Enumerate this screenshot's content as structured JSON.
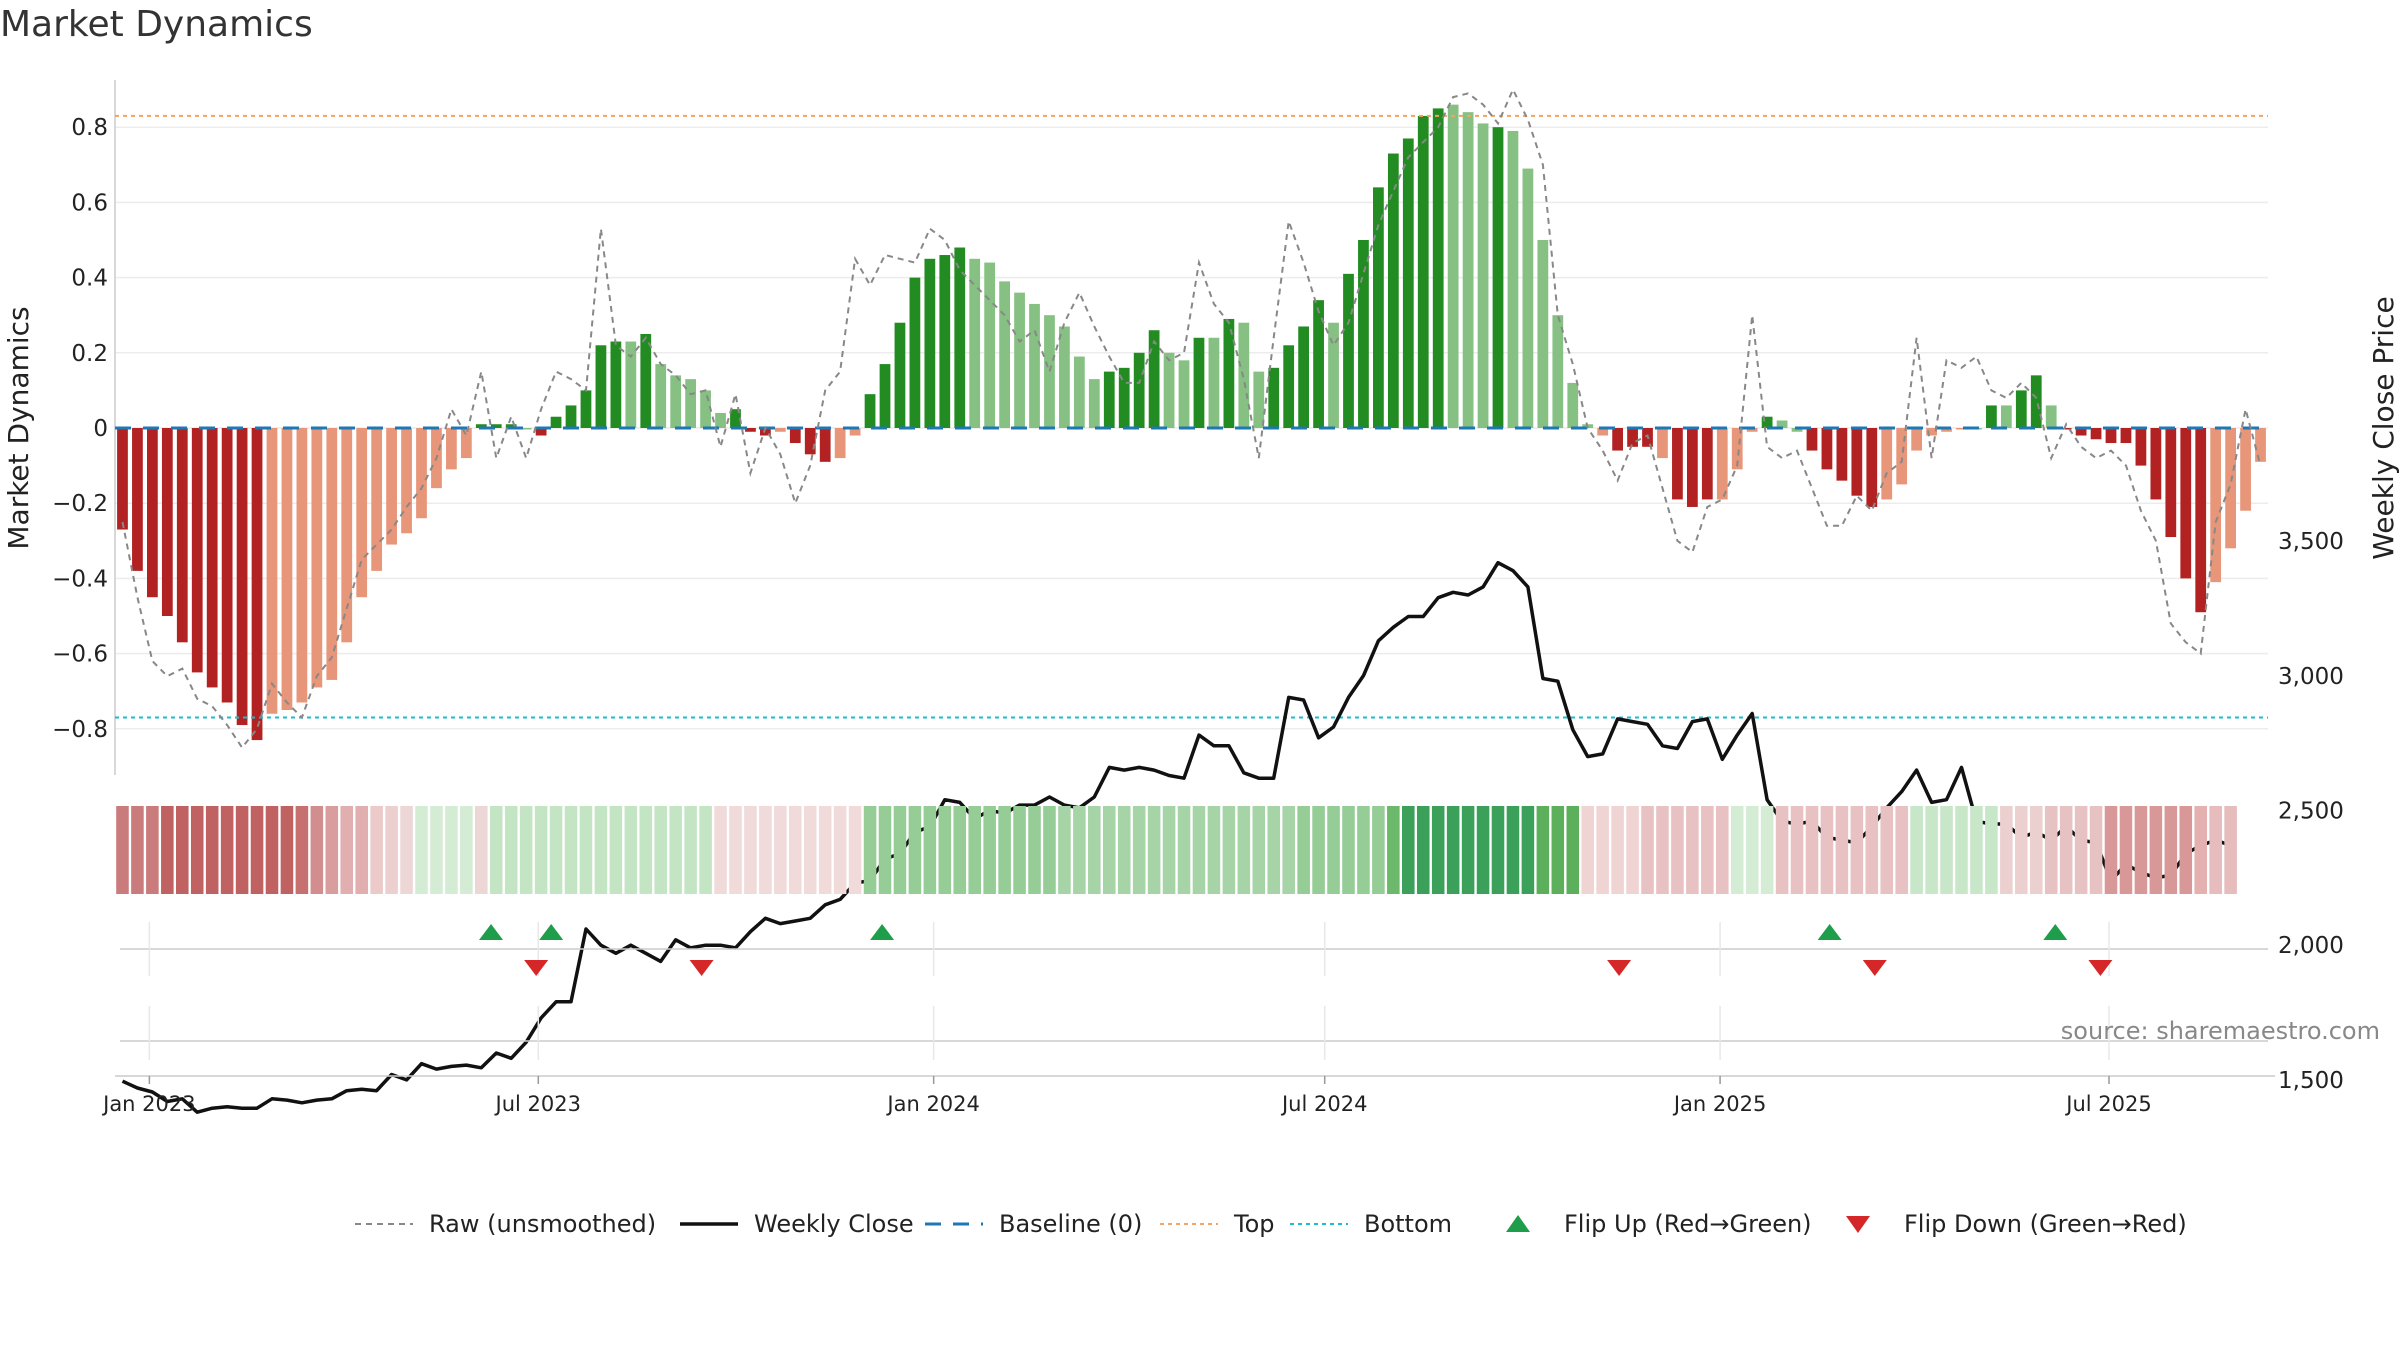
{
  "title": "Market Dynamics",
  "source_text": "source: sharemaestro.com",
  "chart_data": {
    "type": "bar",
    "ylabel_left": "Market Dynamics",
    "ylabel_right": "Weekly Close Price",
    "ylim_left": [
      -0.9,
      0.93
    ],
    "yticks_left": [
      0.8,
      0.6,
      0.4,
      0.2,
      0,
      -0.2,
      -0.4,
      -0.6,
      -0.8
    ],
    "ytick_labels_left": [
      "0.8",
      "0.6",
      "0.4",
      "0.2",
      "0",
      "−0.2",
      "−0.4",
      "−0.6",
      "−0.8"
    ],
    "yticks_right": [
      3500,
      3000,
      2500,
      2000,
      1500
    ],
    "ytick_labels_right": [
      "3,500",
      "3,000",
      "2,500",
      "2,000",
      "1,500"
    ],
    "x_start": "2022-12-16",
    "x_end": "2025-09-13",
    "xticks": [
      "2023-01-01",
      "2023-07-01",
      "2024-01-01",
      "2024-07-01",
      "2025-01-01",
      "2025-07-01"
    ],
    "xtick_labels": [
      "Jan 2023",
      "Jul 2023",
      "Jan 2024",
      "Jul 2024",
      "Jan 2025",
      "Jul 2025"
    ],
    "top_level": 0.83,
    "bottom_level": -0.77,
    "baseline": 0,
    "colors": {
      "up_strong": "#228b22",
      "up_weak": "#86c183",
      "down_strong": "#b22222",
      "down_weak": "#e8967a",
      "raw": "#888888",
      "close": "#111111",
      "baseline": "#1f77b4",
      "top": "#f4a261",
      "bottom": "#17becf",
      "flip_up": "#1e9e4a",
      "flip_down": "#d62728"
    },
    "momentum": [
      -0.27,
      -0.38,
      -0.45,
      -0.5,
      -0.57,
      -0.65,
      -0.69,
      -0.73,
      -0.79,
      -0.83,
      -0.76,
      -0.75,
      -0.73,
      -0.69,
      -0.67,
      -0.57,
      -0.45,
      -0.38,
      -0.31,
      -0.28,
      -0.24,
      -0.16,
      -0.11,
      -0.08,
      0.01,
      0.01,
      0.01,
      0.0,
      -0.02,
      0.03,
      0.06,
      0.1,
      0.22,
      0.23,
      0.23,
      0.25,
      0.17,
      0.14,
      0.13,
      0.1,
      0.04,
      0.05,
      -0.01,
      -0.02,
      -0.01,
      -0.04,
      -0.07,
      -0.09,
      -0.08,
      -0.02,
      0.09,
      0.17,
      0.28,
      0.4,
      0.45,
      0.46,
      0.48,
      0.45,
      0.44,
      0.39,
      0.36,
      0.33,
      0.3,
      0.27,
      0.19,
      0.13,
      0.15,
      0.16,
      0.2,
      0.26,
      0.2,
      0.18,
      0.24,
      0.24,
      0.29,
      0.28,
      0.15,
      0.16,
      0.22,
      0.27,
      0.34,
      0.28,
      0.41,
      0.5,
      0.64,
      0.73,
      0.77,
      0.83,
      0.85,
      0.86,
      0.84,
      0.81,
      0.8,
      0.79,
      0.69,
      0.5,
      0.3,
      0.12,
      0.01,
      -0.02,
      -0.06,
      -0.05,
      -0.05,
      -0.08,
      -0.19,
      -0.21,
      -0.19,
      -0.19,
      -0.11,
      -0.01,
      0.03,
      0.02,
      -0.01,
      -0.06,
      -0.11,
      -0.14,
      -0.18,
      -0.21,
      -0.19,
      -0.15,
      -0.06,
      -0.02,
      -0.01,
      0.0,
      0.0,
      0.06,
      0.06,
      0.1,
      0.14,
      0.06,
      0.0,
      -0.02,
      -0.03,
      -0.04,
      -0.04,
      -0.1,
      -0.19,
      -0.29,
      -0.4,
      -0.49,
      -0.41,
      -0.32,
      -0.22,
      -0.09
    ],
    "colors_per_bar": [
      "ds",
      "ds",
      "ds",
      "ds",
      "ds",
      "ds",
      "ds",
      "ds",
      "ds",
      "ds",
      "dw",
      "dw",
      "dw",
      "dw",
      "dw",
      "dw",
      "dw",
      "dw",
      "dw",
      "dw",
      "dw",
      "dw",
      "dw",
      "dw",
      "us",
      "us",
      "us",
      "uw",
      "ds",
      "us",
      "us",
      "us",
      "us",
      "us",
      "uw",
      "us",
      "uw",
      "uw",
      "uw",
      "uw",
      "uw",
      "us",
      "ds",
      "ds",
      "dw",
      "ds",
      "ds",
      "ds",
      "dw",
      "dw",
      "us",
      "us",
      "us",
      "us",
      "us",
      "us",
      "us",
      "uw",
      "uw",
      "uw",
      "uw",
      "uw",
      "uw",
      "uw",
      "uw",
      "uw",
      "us",
      "us",
      "us",
      "us",
      "uw",
      "uw",
      "us",
      "uw",
      "us",
      "uw",
      "uw",
      "us",
      "us",
      "us",
      "us",
      "uw",
      "us",
      "us",
      "us",
      "us",
      "us",
      "us",
      "us",
      "uw",
      "uw",
      "uw",
      "us",
      "uw",
      "uw",
      "uw",
      "uw",
      "uw",
      "uw",
      "dw",
      "ds",
      "ds",
      "ds",
      "dw",
      "ds",
      "ds",
      "ds",
      "dw",
      "dw",
      "dw",
      "us",
      "uw",
      "uw",
      "ds",
      "ds",
      "ds",
      "ds",
      "ds",
      "dw",
      "dw",
      "dw",
      "dw",
      "dw",
      "dw",
      "uw",
      "us",
      "uw",
      "us",
      "us",
      "uw",
      "ds",
      "ds",
      "ds",
      "ds",
      "ds",
      "ds",
      "ds",
      "ds",
      "ds",
      "ds",
      "dw",
      "dw",
      "dw",
      "dw",
      "dw"
    ],
    "raw": [
      -0.25,
      -0.45,
      -0.62,
      -0.66,
      -0.64,
      -0.72,
      -0.74,
      -0.79,
      -0.85,
      -0.8,
      -0.68,
      -0.73,
      -0.77,
      -0.66,
      -0.61,
      -0.48,
      -0.35,
      -0.31,
      -0.27,
      -0.21,
      -0.16,
      -0.08,
      0.05,
      -0.02,
      0.15,
      -0.08,
      0.03,
      -0.08,
      0.05,
      0.15,
      0.13,
      0.1,
      0.53,
      0.22,
      0.19,
      0.24,
      0.17,
      0.14,
      0.09,
      0.1,
      -0.05,
      0.09,
      -0.12,
      0.0,
      -0.07,
      -0.2,
      -0.1,
      0.1,
      0.15,
      0.45,
      0.38,
      0.46,
      0.45,
      0.44,
      0.53,
      0.5,
      0.42,
      0.38,
      0.34,
      0.3,
      0.23,
      0.26,
      0.15,
      0.28,
      0.36,
      0.27,
      0.19,
      0.12,
      0.12,
      0.23,
      0.18,
      0.2,
      0.44,
      0.33,
      0.28,
      0.13,
      -0.08,
      0.24,
      0.55,
      0.44,
      0.31,
      0.22,
      0.28,
      0.41,
      0.54,
      0.63,
      0.72,
      0.76,
      0.8,
      0.88,
      0.89,
      0.86,
      0.81,
      0.9,
      0.82,
      0.7,
      0.3,
      0.17,
      0.0,
      -0.06,
      -0.14,
      -0.04,
      -0.02,
      -0.16,
      -0.3,
      -0.33,
      -0.21,
      -0.19,
      -0.1,
      0.3,
      -0.05,
      -0.08,
      -0.06,
      -0.16,
      -0.26,
      -0.26,
      -0.18,
      -0.22,
      -0.12,
      -0.09,
      0.24,
      -0.08,
      0.18,
      0.16,
      0.19,
      0.1,
      0.08,
      0.12,
      0.08,
      -0.08,
      0.01,
      -0.05,
      -0.08,
      -0.06,
      -0.1,
      -0.22,
      -0.3,
      -0.52,
      -0.57,
      -0.6,
      -0.25,
      -0.15,
      0.05,
      -0.1
    ],
    "weekly_close": [
      1495,
      1470,
      1455,
      1420,
      1430,
      1380,
      1395,
      1400,
      1395,
      1395,
      1430,
      1425,
      1415,
      1425,
      1430,
      1460,
      1465,
      1460,
      1520,
      1500,
      1560,
      1540,
      1550,
      1555,
      1545,
      1600,
      1580,
      1640,
      1730,
      1790,
      1790,
      2060,
      2000,
      1970,
      2000,
      1970,
      1940,
      2020,
      1990,
      2000,
      2000,
      1990,
      2050,
      2100,
      2080,
      2090,
      2100,
      2150,
      2170,
      2230,
      2240,
      2320,
      2340,
      2420,
      2440,
      2540,
      2530,
      2470,
      2500,
      2490,
      2520,
      2520,
      2550,
      2520,
      2510,
      2550,
      2660,
      2650,
      2660,
      2650,
      2630,
      2620,
      2780,
      2740,
      2740,
      2640,
      2620,
      2620,
      2920,
      2910,
      2770,
      2810,
      2920,
      3000,
      3130,
      3180,
      3220,
      3220,
      3290,
      3310,
      3300,
      3330,
      3420,
      3390,
      3330,
      2990,
      2980,
      2800,
      2700,
      2710,
      2840,
      2830,
      2820,
      2740,
      2730,
      2830,
      2840,
      2690,
      2780,
      2860,
      2540,
      2460,
      2450,
      2460,
      2400,
      2390,
      2380,
      2440,
      2510,
      2570,
      2650,
      2530,
      2540,
      2660,
      2460,
      2450,
      2450,
      2400,
      2420,
      2390,
      2440,
      2390,
      2380,
      2240,
      2300,
      2270,
      2250,
      2260,
      2340,
      2370,
      2390,
      2370
    ],
    "strip_colors": [
      "#ca7c7c",
      "#ca7c7c",
      "#ca7c7c",
      "#c06262",
      "#c06262",
      "#c06262",
      "#c06262",
      "#c06262",
      "#c06262",
      "#c06262",
      "#c06262",
      "#c06262",
      "#c67070",
      "#d28e8e",
      "#d99d9d",
      "#e1afaf",
      "#e1afaf",
      "#eccaca",
      "#ecd0d0",
      "#ecd6d6",
      "#d4ebd4",
      "#d4ebd4",
      "#d4ebd4",
      "#d4ebd4",
      "#ecd6d6",
      "#c4e5c4",
      "#c4e5c4",
      "#c4e5c4",
      "#c4e5c4",
      "#c4e5c4",
      "#c4e5c4",
      "#c4e5c4",
      "#c4e5c4",
      "#c4e5c4",
      "#c4e5c4",
      "#c4e5c4",
      "#c4e5c4",
      "#c4e5c4",
      "#c4e5c4",
      "#c4e5c4",
      "#f0dada",
      "#f0dada",
      "#f0dada",
      "#f0dada",
      "#f0dada",
      "#f0dada",
      "#f0dada",
      "#f0dada",
      "#f0dada",
      "#f0dada",
      "#96cc96",
      "#96cc96",
      "#96cc96",
      "#96cc96",
      "#96cc96",
      "#96cc96",
      "#96cc96",
      "#96cc96",
      "#96cc96",
      "#96cc96",
      "#96cc96",
      "#96cc96",
      "#96cc96",
      "#a6d4a6",
      "#a6d4a6",
      "#a6d4a6",
      "#a6d4a6",
      "#a6d4a6",
      "#a6d4a6",
      "#a6d4a6",
      "#a6d4a6",
      "#a6d4a6",
      "#a6d4a6",
      "#a6d4a6",
      "#a6d4a6",
      "#a6d4a6",
      "#a6d4a6",
      "#a6d4a6",
      "#a6d4a6",
      "#96cc96",
      "#96cc96",
      "#96cc96",
      "#96cc96",
      "#96cc96",
      "#96cc96",
      "#6cb96c",
      "#3aa05a",
      "#3aa05a",
      "#3aa05a",
      "#3aa05a",
      "#3aa05a",
      "#3aa05a",
      "#3aa05a",
      "#3aa05a",
      "#3aa05a",
      "#5cb05c",
      "#5cb05c",
      "#5cb05c",
      "#f0d4d4",
      "#f0d4d4",
      "#f0d4d4",
      "#f0d4d4",
      "#e8c2c2",
      "#e8c2c2",
      "#e8c2c2",
      "#e8c2c2",
      "#e8c2c2",
      "#e8c2c2",
      "#d4ebd4",
      "#d4ebd4",
      "#d4ebd4",
      "#e8c2c2",
      "#e8c2c2",
      "#e8c2c2",
      "#e8c2c2",
      "#e8c2c2",
      "#e8c2c2",
      "#e8c2c2",
      "#e8c2c2",
      "#e8c2c2",
      "#c8e6c8",
      "#c8e6c8",
      "#c8e6c8",
      "#c8e6c8",
      "#c8e6c8",
      "#c8e6c8",
      "#ecd0d0",
      "#ecd0d0",
      "#ecd0d0",
      "#e6c2c2",
      "#e6c2c2",
      "#e6c2c2",
      "#e6c2c2",
      "#d89898",
      "#d89898",
      "#d89898",
      "#d89898",
      "#d89898",
      "#d89898",
      "#e4b0b0",
      "#e6bcbc",
      "#e6bcbc"
    ],
    "flip_up": [
      "2023-06-09",
      "2023-07-07",
      "2023-12-08",
      "2025-02-21",
      "2025-06-06"
    ],
    "flip_down": [
      "2023-06-30",
      "2023-09-15",
      "2024-11-15",
      "2025-03-14",
      "2025-06-27"
    ],
    "legend": [
      {
        "label": "Raw (unsmoothed)",
        "kind": "dashed-gray"
      },
      {
        "label": "Weekly Close",
        "kind": "solid-black"
      },
      {
        "label": "Baseline (0)",
        "kind": "dashed-blue"
      },
      {
        "label": "Top",
        "kind": "dotted-orange"
      },
      {
        "label": "Bottom",
        "kind": "dotted-cyan"
      },
      {
        "label": "Flip Up (Red→Green)",
        "kind": "triangle-up"
      },
      {
        "label": "Flip Down (Green→Red)",
        "kind": "triangle-down"
      }
    ]
  }
}
